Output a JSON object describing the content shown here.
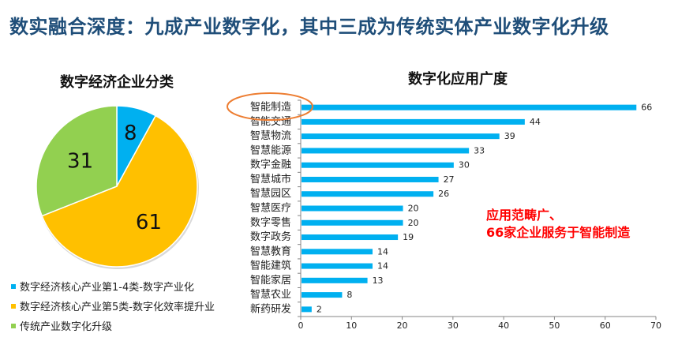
{
  "page": {
    "title": "数实融合深度：九成产业数字化，其中三成为传统实体产业数字化升级"
  },
  "colors": {
    "title": "#1f4e79",
    "bar": "#00b0f0",
    "highlight_ellipse": "#ed7d31",
    "annotation": "#ff0000"
  },
  "annotation": {
    "line1": "应用范畴广、",
    "line2": "66家企业服务于智能制造"
  },
  "chart_data": [
    {
      "type": "pie",
      "title": "数字经济企业分类",
      "labels": [
        "数字经济核心产业第1-4类-数字产业化",
        "数字经济核心产业第5类-数字化效率提升业",
        "传统产业数字化升级"
      ],
      "values": [
        8,
        61,
        31
      ],
      "value_labels": [
        "8",
        "61",
        "31"
      ],
      "colors": [
        "#00b0f0",
        "#ffc000",
        "#92d050"
      ],
      "legend_position": "bottom-left",
      "start_angle": "12 o'clock, clockwise"
    },
    {
      "type": "bar",
      "orientation": "horizontal",
      "title": "数字化应用广度",
      "categories": [
        "智能制造",
        "智能交通",
        "智慧物流",
        "智慧能源",
        "数字金融",
        "智慧城市",
        "智慧园区",
        "智慧医疗",
        "数字零售",
        "数字政务",
        "智慧教育",
        "智能建筑",
        "智能家居",
        "智慧农业",
        "新药研发"
      ],
      "values": [
        66,
        44,
        39,
        33,
        30,
        27,
        26,
        20,
        20,
        19,
        14,
        14,
        13,
        8,
        2
      ],
      "value_labels": [
        "66",
        "44",
        "39",
        "33",
        "30",
        "27",
        "26",
        "20",
        "20",
        "19",
        "14",
        "14",
        "13",
        "8",
        "2"
      ],
      "xlim": [
        0,
        70
      ],
      "xticks": [
        0,
        10,
        20,
        30,
        40,
        50,
        60,
        70
      ],
      "xtick_labels": [
        "0",
        "10",
        "20",
        "30",
        "40",
        "50",
        "60",
        "70"
      ],
      "grid": false,
      "highlighted_category": "智能制造",
      "color": "#00b0f0"
    }
  ]
}
